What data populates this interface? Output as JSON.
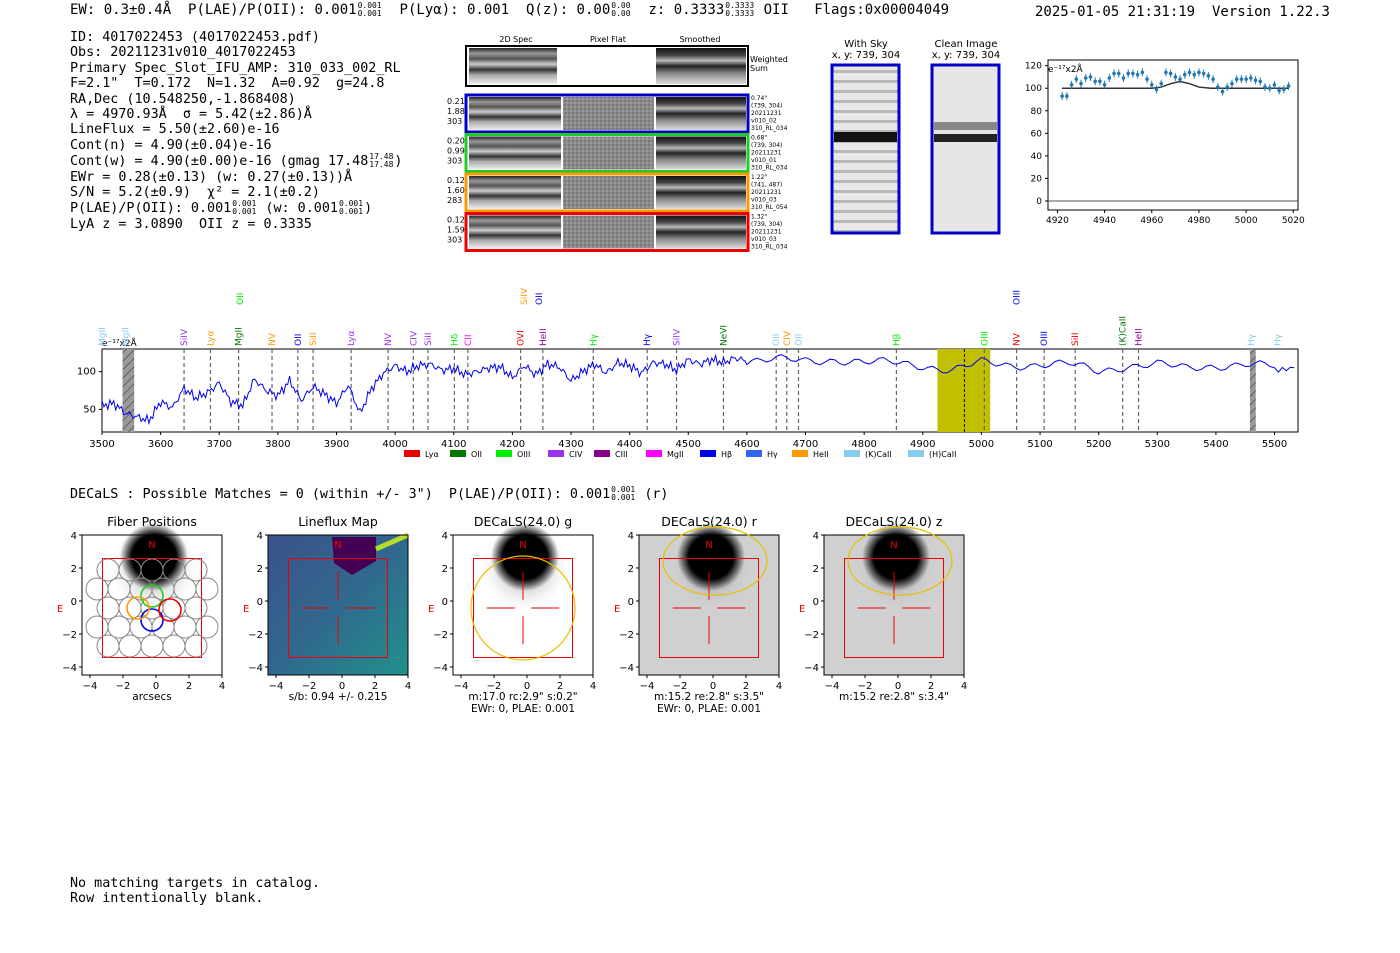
{
  "header": {
    "ew": "EW: 0.3±0.4Å",
    "plae": "P(LAE)/P(OII): 0.001",
    "plae_hi": "0.001",
    "plae_lo": "0.001",
    "plya": "P(Lyα): 0.001",
    "qz": "Q(z): 0.00",
    "qz_hi": "0.00",
    "qz_lo": "0.00",
    "z": "z: 0.3333",
    "z_hi": "0.3333",
    "z_lo": "0.3333",
    "z_line": "OII",
    "flags": "Flags:0x00004049",
    "timestamp": "2025-01-05 21:31:19",
    "version": "Version 1.22.3"
  },
  "info": {
    "id": "ID: 4017022453 (4017022453.pdf)",
    "obs": "Obs: 20211231v010_4017022453",
    "primary": "Primary Spec_Slot_IFU_AMP: 310_033_002_RL",
    "params": "F=2.1\"  T=0.172  N=1.32  A=0.92  g=24.8",
    "radec": "RA,Dec (10.548250,-1.868408)",
    "lambda": "λ = 4970.93Å  σ = 5.42(±2.86)Å",
    "lineflux": "LineFlux = 5.50(±2.60)e-16",
    "contn": "Cont(n) = 4.90(±0.04)e-16",
    "contw": "Cont(w) = 4.90(±0.00)e-16 (gmag 17.48",
    "contw_hi": "17.48",
    "contw_lo": "17.48",
    "ewr": "EWr = 0.28(±0.13) (w: 0.27(±0.13))Å",
    "sn": "S/N = 5.2(±0.9)  χ² = 2.1(±0.2)",
    "plae": "P(LAE)/P(OII): 0.001",
    "plae_hi": "0.001",
    "plae_lo": "0.001",
    "plae_w": "(w: 0.001",
    "plae_w_hi": "0.001",
    "plae_w_lo": "0.001",
    "lyaz": "LyA z = 3.0890  OII z = 0.3335"
  },
  "cutouts": {
    "col_labels": [
      "2D Spec",
      "Pixel Flat",
      "Smoothed"
    ],
    "weighted_label": [
      "Weighted",
      "Sum"
    ],
    "rows": [
      {
        "color": "#0000cc",
        "left": [
          "0.21",
          "1.88",
          "303"
        ],
        "right": [
          "0.74\"",
          "(739, 304)",
          "20211231",
          "v010_02",
          "310_RL_034"
        ]
      },
      {
        "color": "#22cc22",
        "left": [
          "0.20",
          "0.99",
          "303"
        ],
        "right": [
          "0.68\"",
          "(739, 304)",
          "20211231",
          "v010_01",
          "310_RL_034"
        ]
      },
      {
        "color": "#ff9900",
        "left": [
          "0.12",
          "1.60",
          "283"
        ],
        "right": [
          "1.22\"",
          "(741, 487)",
          "20211231",
          "v010_03",
          "310_RL_054"
        ]
      },
      {
        "color": "#ee0000",
        "left": [
          "0.12",
          "1.59",
          "303"
        ],
        "right": [
          "1.32\"",
          "(739, 304)",
          "20211231",
          "v010_03",
          "310_RL_034"
        ]
      }
    ],
    "sky_title": [
      "With Sky",
      "x, y: 739, 304"
    ],
    "clean_title": [
      "Clean Image",
      "x, y: 739, 304"
    ]
  },
  "zoom_plot": {
    "ylabel": "e⁻¹⁷x2Å",
    "xticks": [
      "4920",
      "4940",
      "4960",
      "4980",
      "5000",
      "5020"
    ],
    "yticks": [
      "0",
      "20",
      "40",
      "60",
      "80",
      "100",
      "120"
    ],
    "marker_color": "#1f77b4"
  },
  "spectrum": {
    "ylabel": "e⁻¹⁷x2Å",
    "xticks": [
      "3500",
      "3600",
      "3700",
      "3800",
      "3900",
      "4000",
      "4100",
      "4200",
      "4300",
      "4400",
      "4500",
      "4600",
      "4700",
      "4800",
      "4900",
      "5000",
      "5100",
      "5200",
      "5300",
      "5400",
      "5500"
    ],
    "yticks": [
      "50",
      "100"
    ],
    "legend": [
      {
        "label": "Lyα",
        "color": "#ee0000"
      },
      {
        "label": "OII",
        "color": "#007700"
      },
      {
        "label": "OIII",
        "color": "#00ee00"
      },
      {
        "label": "CIV",
        "color": "#9933ee"
      },
      {
        "label": "CIII",
        "color": "#880088"
      },
      {
        "label": "MgII",
        "color": "#ff00ff"
      },
      {
        "label": "Hβ",
        "color": "#0000ee"
      },
      {
        "label": "Hγ",
        "color": "#3366ee"
      },
      {
        "label": "HeII",
        "color": "#ff9900"
      },
      {
        "label": "(K)CaII",
        "color": "#88ccee"
      },
      {
        "label": "(H)CaII",
        "color": "#88ccee"
      }
    ],
    "line_labels": [
      {
        "text": "MgII",
        "color": "#88ccee",
        "w": 3500
      },
      {
        "text": "MgII",
        "color": "#88ccee",
        "w": 3540
      },
      {
        "text": "SiIV",
        "color": "#9933ee",
        "w": 3640
      },
      {
        "text": "Lyα",
        "color": "#ff9900",
        "w": 3685
      },
      {
        "text": "MgII",
        "color": "#007700",
        "w": 3733
      },
      {
        "text": "NV",
        "color": "#ff9900",
        "w": 3790
      },
      {
        "text": "OII",
        "color": "#0000ee",
        "w": 3834
      },
      {
        "text": "SiII",
        "color": "#ff9900",
        "w": 3860
      },
      {
        "text": "Lyα",
        "color": "#9933ee",
        "w": 3925
      },
      {
        "text": "NV",
        "color": "#9933ee",
        "w": 3988
      },
      {
        "text": "CIV",
        "color": "#9933ee",
        "w": 4031
      },
      {
        "text": "SiII",
        "color": "#9933ee",
        "w": 4056
      },
      {
        "text": "Hδ",
        "color": "#00ee00",
        "w": 4101
      },
      {
        "text": "CII",
        "color": "#ff00ff",
        "w": 4124
      },
      {
        "text": "OVI",
        "color": "#ee0000",
        "w": 4214
      },
      {
        "text": "HeII",
        "color": "#880088",
        "w": 4252
      },
      {
        "text": "Hγ",
        "color": "#00ee00",
        "w": 4338
      },
      {
        "text": "Hγ",
        "color": "#0000ee",
        "w": 4430
      },
      {
        "text": "SiIV",
        "color": "#9933ee",
        "w": 4480
      },
      {
        "text": "NeVI",
        "color": "#007700",
        "w": 4560
      },
      {
        "text": "OII",
        "color": "#88ccee",
        "w": 4650
      },
      {
        "text": "CIV",
        "color": "#ff9900",
        "w": 4668
      },
      {
        "text": "OII",
        "color": "#88ccee",
        "w": 4688
      },
      {
        "text": "Hβ",
        "color": "#00ee00",
        "w": 4855
      },
      {
        "text": "OIII",
        "color": "#00ee00",
        "w": 5005
      },
      {
        "text": "NV",
        "color": "#ee0000",
        "w": 5060
      },
      {
        "text": "OIII",
        "color": "#0000ee",
        "w": 5107
      },
      {
        "text": "SiII",
        "color": "#ee0000",
        "w": 5160
      },
      {
        "text": "(K)CaII",
        "color": "#007700",
        "w": 5241
      },
      {
        "text": "HeII",
        "color": "#880088",
        "w": 5268
      },
      {
        "text": "Hγ",
        "color": "#88ccee",
        "w": 5460
      },
      {
        "text": "Hγ",
        "color": "#88ccee",
        "w": 5505
      }
    ],
    "upper_labels": [
      {
        "text": "OII",
        "color": "#00ee00",
        "w": 3735
      },
      {
        "text": "SiIV",
        "color": "#ff9900",
        "w": 4220
      },
      {
        "text": "OII",
        "color": "#0000ee",
        "w": 4245
      },
      {
        "text": "OIII",
        "color": "#0000ee",
        "w": 5060
      }
    ]
  },
  "decals": {
    "line": "DECaLS : Possible Matches = 0 (within +/- 3\")  P(LAE)/P(OII): 0.001",
    "line_hi": "0.001",
    "line_lo": "0.001",
    "line_suffix": "(r)",
    "panels": [
      {
        "title": "Fiber Positions",
        "caption": [
          "arcsecs"
        ]
      },
      {
        "title": "Lineflux Map",
        "caption": [
          "s/b: 0.94 +/- 0.215"
        ]
      },
      {
        "title": "DECaLS(24.0) g",
        "caption": [
          "m:17.0 rc:2.9\"  s:0.2\"",
          "EWr: 0, PLAE: 0.001"
        ]
      },
      {
        "title": "DECaLS(24.0) r",
        "caption": [
          "m:15.2  re:2.8\"  s:3.5\"",
          "EWr: 0, PLAE: 0.001"
        ]
      },
      {
        "title": "DECaLS(24.0) z",
        "caption": [
          "m:15.2  re:2.8\"  s:3.4\""
        ]
      }
    ],
    "ticks": [
      "−4",
      "−2",
      "0",
      "2",
      "4"
    ],
    "north": "N",
    "east": "E"
  },
  "footer": {
    "line1": "No matching targets in catalog.",
    "line2": "Row intentionally blank."
  },
  "chart_data": [
    {
      "type": "scatter",
      "title": "",
      "xlabel": "",
      "ylabel": "e⁻¹⁷x2Å",
      "xlim": [
        4916,
        5022
      ],
      "ylim": [
        -8,
        125
      ],
      "x": [
        4922,
        4924,
        4926,
        4928,
        4930,
        4932,
        4934,
        4936,
        4938,
        4940,
        4942,
        4944,
        4946,
        4948,
        4950,
        4952,
        4954,
        4956,
        4958,
        4960,
        4962,
        4964,
        4966,
        4968,
        4970,
        4972,
        4974,
        4976,
        4978,
        4980,
        4982,
        4984,
        4986,
        4988,
        4990,
        4992,
        4994,
        4996,
        4998,
        5000,
        5002,
        5004,
        5006,
        5008,
        5010,
        5012,
        5014,
        5016,
        5018
      ],
      "y": [
        93,
        93,
        103,
        108,
        104,
        109,
        110,
        106,
        106,
        103,
        109,
        113,
        113,
        109,
        113,
        113,
        112,
        114,
        108,
        103,
        99,
        104,
        114,
        113,
        110,
        108,
        112,
        114,
        112,
        114,
        113,
        111,
        108,
        101,
        97,
        101,
        104,
        108,
        108,
        108,
        109,
        107,
        106,
        101,
        100,
        103,
        98,
        99,
        102
      ],
      "series": [
        {
          "name": "",
          "x": [
            4922,
            4930,
            4940,
            4950,
            4955,
            4960,
            4964,
            4968,
            4972,
            4976,
            4980,
            4985,
            4990,
            5000,
            5010,
            5018
          ],
          "y": [
            100,
            100,
            100,
            100,
            100,
            100,
            101,
            104,
            106,
            104,
            101,
            100,
            100,
            100,
            100,
            100
          ]
        }
      ]
    },
    {
      "type": "line",
      "title": "",
      "xlabel": "",
      "ylabel": "e⁻¹⁷x2Å",
      "xlim": [
        3500,
        5540
      ],
      "ylim": [
        20,
        130
      ],
      "x": [
        3500,
        3520,
        3540,
        3560,
        3580,
        3600,
        3620,
        3640,
        3660,
        3680,
        3700,
        3720,
        3740,
        3760,
        3780,
        3800,
        3820,
        3840,
        3860,
        3880,
        3900,
        3920,
        3940,
        3960,
        3980,
        4000,
        4020,
        4040,
        4060,
        4080,
        4100,
        4120,
        4140,
        4160,
        4180,
        4200,
        4220,
        4240,
        4260,
        4280,
        4300,
        4320,
        4340,
        4360,
        4380,
        4400,
        4420,
        4440,
        4460,
        4480,
        4500,
        4520,
        4540,
        4560,
        4580,
        4600,
        4650,
        4700,
        4750,
        4800,
        4850,
        4900,
        4950,
        5000,
        5050,
        5100,
        5150,
        5200,
        5250,
        5300,
        5350,
        5400,
        5450,
        5500,
        5540
      ],
      "y": [
        55,
        58,
        45,
        40,
        35,
        60,
        52,
        78,
        65,
        72,
        85,
        60,
        55,
        90,
        75,
        68,
        88,
        62,
        80,
        70,
        58,
        82,
        45,
        78,
        98,
        108,
        100,
        108,
        110,
        102,
        104,
        96,
        100,
        105,
        106,
        92,
        108,
        96,
        110,
        106,
        88,
        100,
        110,
        98,
        112,
        108,
        98,
        112,
        110,
        102,
        116,
        110,
        116,
        112,
        118,
        114,
        116,
        114,
        116,
        112,
        112,
        108,
        102,
        112,
        108,
        110,
        110,
        100,
        108,
        110,
        104,
        108,
        110,
        106,
        108
      ]
    }
  ]
}
